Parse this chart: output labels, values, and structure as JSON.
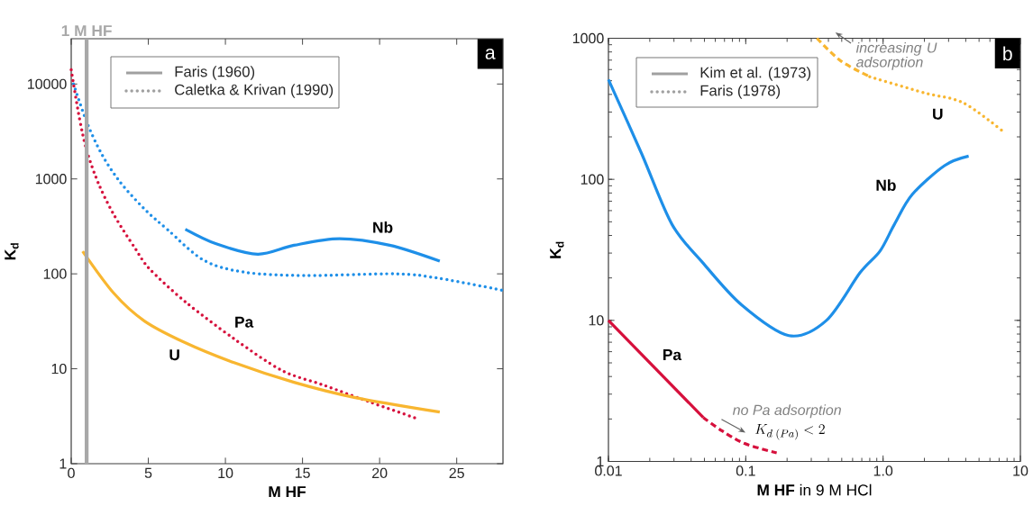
{
  "chart_data": [
    {
      "type": "line",
      "title": "a",
      "xlabel": "M HF",
      "ylabel": "K$_{d}$",
      "log": "y",
      "xlim": [
        0,
        28
      ],
      "ylim": [
        1,
        30000
      ],
      "xticks": [
        0,
        5,
        10,
        15,
        20,
        25
      ],
      "yticks": [
        1,
        10,
        100,
        1000,
        10000
      ],
      "series": [
        {
          "name": "Nb",
          "color": "#1e8fe8",
          "line_style": "solid",
          "x": [
            7.4,
            9.4,
            12.1,
            14.45,
            17.4,
            20.65,
            23.9
          ],
          "values": [
            295,
            207,
            161,
            200,
            235,
            200,
            136
          ]
        },
        {
          "color": "#1e8fe8",
          "line_style": "dotted",
          "x": [
            0.15,
            1.03,
            2.0,
            3.15,
            4.73,
            6.28,
            8.6,
            11.24,
            15.2,
            21.06,
            23.8,
            28
          ],
          "values": [
            10000,
            3890,
            1800,
            936,
            485,
            289,
            139,
            104,
            96,
            100,
            90,
            67
          ]
        },
        {
          "name": "Pa",
          "color": "#d6103c",
          "line_style": "dotted",
          "x": [
            0,
            0.54,
            1.03,
            1.81,
            2.78,
            4.14,
            5.1,
            7.45,
            10.56,
            13.67,
            16.4,
            19.3,
            22.4
          ],
          "values": [
            14100,
            4300,
            1930,
            863,
            416,
            186,
            112,
            50,
            20.7,
            9.6,
            6.7,
            4.5,
            3.0
          ]
        },
        {
          "name": "U",
          "color": "#f8b630",
          "line_style": "solid",
          "x": [
            0.74,
            2.78,
            4.73,
            7.25,
            10.56,
            14.45,
            18.34,
            23.9
          ],
          "values": [
            173,
            62,
            32,
            19.3,
            11.6,
            7.2,
            5.0,
            3.5
          ]
        }
      ],
      "ref_lines": [
        {
          "axis": "x",
          "value": 1,
          "label": "1 M HF",
          "color": "#a8a8a8"
        }
      ],
      "annotations": [
        "Faris (1960)",
        "Caletka & Krivan (1990)"
      ]
    },
    {
      "type": "line",
      "title": "b",
      "xlabel": "**M HF** in 9 M HCl",
      "ylabel": "K$_{d}$",
      "log": "xy",
      "xlim": [
        0.01,
        10
      ],
      "ylim": [
        1,
        1000
      ],
      "xticks": [
        0.01,
        0.1,
        {
          "value": 1,
          "label": "1.0"
        },
        10
      ],
      "yticks": [
        1,
        10,
        100,
        1000
      ],
      "series": [
        {
          "name": "Nb",
          "color": "#1e8fe8",
          "line_style": "solid",
          "x": [
            0.01,
            0.0174,
            0.029,
            0.0487,
            0.093,
            0.206,
            0.387,
            0.68,
            0.95,
            1.21,
            1.63,
            2.8,
            4.2
          ],
          "values": [
            510,
            153,
            48,
            25.6,
            12.9,
            7.8,
            10,
            21.8,
            31,
            48,
            78,
            125,
            146
          ]
        },
        {
          "name": "Pa",
          "color": "#d6103c",
          "line_style": "solid",
          "x": [
            0.01,
            0.049
          ],
          "values": [
            10,
            2.05
          ]
        },
        {
          "color": "#d6103c",
          "line_style": "dashed",
          "x": [
            0.049,
            0.067,
            0.098,
            0.168
          ],
          "values": [
            2.05,
            1.65,
            1.34,
            1.15
          ]
        },
        {
          "color": "#f8b630",
          "line_style": "dashed",
          "x": [
            0.33,
            0.49,
            0.8
          ],
          "values": [
            1000,
            693,
            534
          ]
        },
        {
          "name": "U",
          "color": "#f8b630",
          "line_style": "dotted",
          "x": [
            0.8,
            2.0,
            3.8,
            7.3
          ],
          "values": [
            534,
            410,
            350,
            223
          ]
        }
      ],
      "annotations": [
        "Kim et al. (1973)",
        "Faris (1978)",
        "increasing U adsorption",
        "no Pa adsorption",
        "K_{d\\;(Pa)} < 2"
      ]
    }
  ]
}
